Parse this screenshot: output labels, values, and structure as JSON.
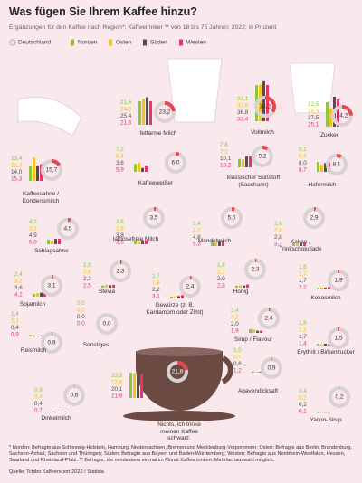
{
  "chart_data": {
    "type": "bar",
    "title": "Was fügen Sie Ihrem Kaffee hinzu?",
    "subtitle": "Ergänzungen für den Kaffee nach Region*; Kaffeetrinker ** von 18 bis 75 Jahren; 2022; in Prozent",
    "categories": [
      "fettarme Milch",
      "Vollmilch",
      "Zucker",
      "Kaffeesahne / Kondensmilch",
      "Kaffeeweißer",
      "klassischer Süßstoff (Saccharin)",
      "Hafermilch",
      "Schlagsahne",
      "laktosefreie Milch",
      "Mandelmilch",
      "Kakao / Trinkschokolade",
      "Sojamilch",
      "Stevia",
      "Gewürze (z. B. Kardamom oder Zimt)",
      "Honig",
      "Kokosmilch",
      "Reismilch",
      "Sonstiges",
      "Sirup / Flavour",
      "Erythrit / Birkenzucker",
      "Agavendicksaft",
      "Nichts, ich trinke meinen Kaffee schwarz.",
      "Dinkelmilch",
      "Yacon-Sirup"
    ],
    "series": [
      {
        "name": "Deutschland",
        "color": "#e9474f",
        "values": [
          23.2,
          34.2,
          24.2,
          15.7,
          6.0,
          9.2,
          8.1,
          4.5,
          3.5,
          5.0,
          2.9,
          3.1,
          2.3,
          2.4,
          2.3,
          1.9,
          0.9,
          0.0,
          2.4,
          1.5,
          0.9,
          21.8,
          0.6,
          0.2
        ],
        "value_labels": [
          "23,2",
          "34,2",
          "24,2",
          "15,7",
          "6,0",
          "9,2",
          "8,1",
          "4,5",
          "3,5",
          "5,0",
          "2,9",
          "3,1",
          "2,3",
          "2,4",
          "2,3",
          "1,9",
          "0,9",
          "0,0",
          "2,4",
          "1,5",
          "0,9",
          "21,8",
          "0,6",
          "0,2"
        ]
      },
      {
        "name": "Norden",
        "color": "#8cc63f",
        "values": [
          21.6,
          33.1,
          22.5,
          13.4,
          7.2,
          7.8,
          9.1,
          4.2,
          3.6,
          5.4,
          2.6,
          2.4,
          1.9,
          1.7,
          1.8,
          1.6,
          1.4,
          0.0,
          3.4,
          1.6,
          1.0,
          23.3,
          0.9,
          0.4
        ],
        "value_labels": [
          "21,6",
          "33,1",
          "22,5",
          "13,4",
          "7,2",
          "7,8",
          "9,1",
          "4,2",
          "3,6",
          "5,4",
          "2,6",
          "2,4",
          "1,9",
          "1,7",
          "1,8",
          "1,6",
          "1,4",
          "0,0",
          "3,4",
          "1,6",
          "1,0",
          "23,3",
          "0,9",
          "0,4"
        ]
      },
      {
        "name": "Osten",
        "color": "#f2c21b",
        "values": [
          24.0,
          33.6,
          16.9,
          21.3,
          8.4,
          7.2,
          6.4,
          3.2,
          2.8,
          4.2,
          2.4,
          3.1,
          2.6,
          1.8,
          2.1,
          1.7,
          1.1,
          0.0,
          3.1,
          1.1,
          0.7,
          22.8,
          0.4,
          0.2
        ],
        "value_labels": [
          "24,0",
          "33,6",
          "16,9",
          "21,3",
          "8,4",
          "7,2",
          "6,4",
          "3,2",
          "2,8",
          "4,2",
          "2,4",
          "3,1",
          "2,6",
          "1,8",
          "2,1",
          "1,7",
          "1,1",
          "0,0",
          "3,1",
          "1,1",
          "0,7",
          "22,8",
          "0,4",
          "0,2"
        ]
      },
      {
        "name": "Süden",
        "color": "#5b4b4b",
        "values": [
          25.4,
          36.8,
          27.5,
          14.0,
          3.6,
          10.1,
          8.0,
          4.9,
          3.8,
          4.8,
          2.8,
          3.6,
          2.2,
          2.2,
          2.0,
          1.7,
          0.4,
          0.0,
          2.0,
          1.7,
          0.6,
          20.1,
          0.4,
          0.2
        ],
        "value_labels": [
          "25,4",
          "36,8",
          "27,5",
          "14,0",
          "3,6",
          "10,1",
          "8,0",
          "4,9",
          "3,8",
          "4,8",
          "2,8",
          "3,6",
          "2,2",
          "2,2",
          "2,0",
          "1,7",
          "0,4",
          "0,0",
          "2,0",
          "1,7",
          "0,6",
          "20,1",
          "0,4",
          "0,2"
        ]
      },
      {
        "name": "Westen",
        "color": "#e8336d",
        "values": [
          21.6,
          33.4,
          25.1,
          15.3,
          5.9,
          10.2,
          8.7,
          5.0,
          3.5,
          5.3,
          3.2,
          4.2,
          2.5,
          3.1,
          2.8,
          2.2,
          0.9,
          0.0,
          1.9,
          1.4,
          1.2,
          21.9,
          0.7,
          0.1
        ],
        "value_labels": [
          "21,6",
          "33,4",
          "25,1",
          "15,3",
          "5,9",
          "10,2",
          "8,7",
          "5,0",
          "3,5",
          "5,3",
          "3,2",
          "4,2",
          "2,5",
          "3,1",
          "2,8",
          "2,2",
          "0,9",
          "0,0",
          "1,9",
          "1,4",
          "1,2",
          "21,9",
          "0,7",
          "0,1"
        ]
      }
    ],
    "ylim": [
      0,
      100
    ],
    "notes": "* Norden: Befragte aus Schleswig-Holstein, Hamburg, Niedersachsen, Bremen und Mecklenburg-Vorpommern; Osten: Befragte aus Berlin, Brandenburg, Sachsen-Anhalt, Sachsen und Thüringen; Süden: Befragte aus Bayern und Baden-Württemberg; Westen: Befragte aus Nordrhein-Westfalen, Hessen, Saarland und Rheinland-Pfalz. ** Befragte, die mindestens einmal im Monat Kaffee trinken. Mehrfachauswahl möglich.",
    "source": "Quelle: Tchibo Kaffeereport 2022 / Statista"
  }
}
